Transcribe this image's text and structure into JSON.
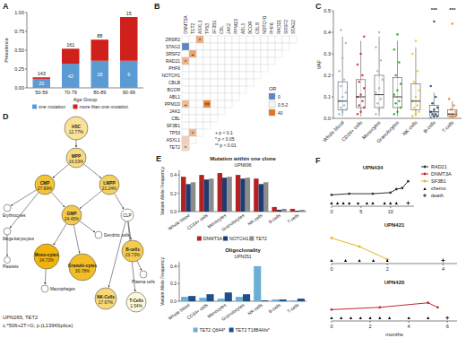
{
  "panel_labels": [
    "A",
    "B",
    "C",
    "D",
    "E",
    "F"
  ],
  "chart_data": [
    {
      "type": "bar",
      "stacked": true,
      "ylabel": "Prevalence",
      "xlabel": "Age Group",
      "categories": [
        "50-59",
        "70-79",
        "80-89",
        "90-99"
      ],
      "series": [
        {
          "name": "one mutation",
          "color": "#5a9bd4",
          "values": [
            0.12,
            0.32,
            0.36,
            0.36
          ],
          "labels": [
            20,
            42,
            18,
            6
          ]
        },
        {
          "name": "more than one mutation",
          "color": "#d0201c",
          "values": [
            0.02,
            0.2,
            0.28,
            0.58
          ]
        }
      ],
      "totals": [
        143,
        161,
        88,
        15
      ],
      "ylim": [
        0,
        1
      ],
      "yticks": [
        {
          "value": 0,
          "label": "0.00"
        },
        {
          "value": 0.25,
          "label": "0.25"
        },
        {
          "value": 0.5,
          "label": "0.50"
        },
        {
          "value": 0.75,
          "label": "0.75"
        },
        {
          "value": 1,
          "label": "1.00"
        }
      ],
      "legend": "bottom"
    },
    {
      "type": "heatmap",
      "rows": [
        "ZRSR2",
        "STAG2",
        "SRSF2",
        "RAD21",
        "PHF6",
        "NOTCH1",
        "CBLB",
        "BCOR",
        "ABL1",
        "PPM1D",
        "JAK2",
        "CBL",
        "SF3B1",
        "TP53",
        "ASXL1",
        "TET2"
      ],
      "cols": [
        "DNMT3A",
        "TET2",
        "ASXL1",
        "TP53",
        "SF3B1",
        "CBL",
        "JAK2",
        "PPM1D",
        "ABL1",
        "BCOR",
        "CBLB",
        "NOTCH1",
        "PHF6",
        "RAD21",
        "SRSF2",
        "STAG2"
      ],
      "cells": [
        {
          "row": 0,
          "col": 2,
          "value": 8,
          "sig": "*"
        },
        {
          "row": 1,
          "col": 0,
          "value": 0
        },
        {
          "row": 2,
          "col": 1,
          "value": 10,
          "sig": "+"
        },
        {
          "row": 3,
          "col": 0,
          "value": 6,
          "sig": "*"
        },
        {
          "row": 9,
          "col": 0,
          "value": 5,
          "sig": "+"
        },
        {
          "row": 9,
          "col": 3,
          "value": 30,
          "sig": "**"
        },
        {
          "row": 13,
          "col": 1,
          "value": 6,
          "sig": "*"
        },
        {
          "row": 14,
          "col": 0,
          "value": 3
        },
        {
          "row": 15,
          "col": 0,
          "value": 2.5,
          "sig": "*"
        }
      ],
      "color_title": "OR",
      "color_ticks": [
        0,
        {
          "value": 1,
          "label": "0.5-2"
        },
        40
      ],
      "sig_legend": [
        "+ p < 0.1",
        "* p < 0.05",
        "** p < 0.01"
      ]
    },
    {
      "type": "box",
      "ylabel": "VAF",
      "categories": [
        "Whole blood",
        "CD34+ cells",
        "Monocytes",
        "Granulocytes",
        "NK-cells",
        "B-cells",
        "T-cells"
      ],
      "groups": [
        {
          "color": "#8fb8de",
          "values": [
            0.02,
            0.03,
            0.04,
            0.05,
            0.06,
            0.08,
            0.1,
            0.12,
            0.15,
            0.18,
            0.22,
            0.28,
            0.35,
            0.41
          ],
          "box": [
            0.01,
            0.04,
            0.08,
            0.17,
            0.38
          ]
        },
        {
          "color": "#d62728",
          "values": [
            0.02,
            0.03,
            0.05,
            0.06,
            0.08,
            0.1,
            0.11,
            0.14,
            0.17,
            0.2,
            0.25,
            0.3,
            0.38
          ],
          "box": [
            0.01,
            0.05,
            0.1,
            0.18,
            0.36
          ]
        },
        {
          "color": "#9fb6c8",
          "values": [
            0.02,
            0.04,
            0.05,
            0.07,
            0.09,
            0.12,
            0.14,
            0.18,
            0.22,
            0.27,
            0.33,
            0.4
          ],
          "box": [
            0.01,
            0.05,
            0.11,
            0.2,
            0.38
          ]
        },
        {
          "color": "#2ca02c",
          "values": [
            0.02,
            0.03,
            0.05,
            0.07,
            0.08,
            0.11,
            0.13,
            0.16,
            0.2,
            0.26,
            0.32,
            0.39
          ],
          "box": [
            0.01,
            0.05,
            0.1,
            0.19,
            0.36
          ]
        },
        {
          "color": "#f0c419",
          "values": [
            0.01,
            0.02,
            0.03,
            0.05,
            0.06,
            0.08,
            0.1,
            0.13,
            0.17,
            0.22,
            0.3,
            0.36
          ],
          "box": [
            0.01,
            0.04,
            0.08,
            0.16,
            0.33
          ]
        },
        {
          "color": "#1f3f7a",
          "values": [
            0,
            0.01,
            0.01,
            0.02,
            0.02,
            0.03,
            0.04,
            0.05,
            0.07,
            0.1,
            0.15,
            0.45
          ],
          "box": [
            0,
            0.01,
            0.03,
            0.06,
            0.12
          ],
          "annotation": "***"
        },
        {
          "color": "#f58231",
          "values": [
            0,
            0,
            0.01,
            0.01,
            0.01,
            0.02,
            0.02,
            0.03,
            0.04,
            0.06,
            0.09,
            0.44
          ],
          "box": [
            0,
            0.01,
            0.02,
            0.04,
            0.08
          ],
          "annotation": "***"
        }
      ],
      "ylim": [
        0,
        0.5
      ],
      "yticks": [
        {
          "value": 0,
          "label": "0.0"
        },
        {
          "value": 0.1,
          "label": "0.1"
        },
        {
          "value": 0.2,
          "label": "0.2"
        },
        {
          "value": 0.3,
          "label": "0.3"
        },
        {
          "value": 0.4,
          "label": "0.4"
        },
        {
          "value": 0.5,
          "label": "0.5"
        }
      ]
    },
    {
      "type": "bar",
      "title": "Mutation within one clone",
      "subtitle": "UPN696",
      "ylabel": "Variant Allele Frequency",
      "categories": [
        "Whole blood",
        "CD34+ cells",
        "Monocytes",
        "Granulocytes",
        "NK-cells",
        "B-cells",
        "T-cells"
      ],
      "series": [
        {
          "name": "DNMT3A",
          "color": "#b22222",
          "values": [
            0.38,
            0.4,
            0.42,
            0.4,
            0.36,
            0.05,
            0.03
          ]
        },
        {
          "name": "NOTCH1",
          "color": "#1f3b73",
          "values": [
            0.3,
            0.35,
            0.37,
            0.36,
            0.3,
            0.02,
            0.01
          ]
        },
        {
          "name": "TET2",
          "color": "#8c8c8c",
          "values": [
            0.32,
            0.36,
            0.38,
            0.37,
            0.32,
            0.03,
            0.02
          ]
        }
      ],
      "ylim": [
        0,
        0.45
      ],
      "yticks": [
        {
          "value": 0,
          "label": "0.0"
        },
        {
          "value": 0.2,
          "label": "0.2"
        },
        {
          "value": 0.4,
          "label": "0.4"
        }
      ],
      "legend": "bottom"
    },
    {
      "type": "bar",
      "title": "Oligoclonality",
      "subtitle": "UPN351",
      "ylabel": "Variant Allele Frequency",
      "categories": [
        "Whole blood",
        "CD34+ cells",
        "Monocytes",
        "Granulocytes",
        "NK-cells",
        "B-cells",
        "T-cells"
      ],
      "series": [
        {
          "name": "TET2 Q644*",
          "color": "#6baed6",
          "values": [
            0.05,
            0.04,
            0.03,
            0.05,
            0.4,
            0.02,
            0.01
          ]
        },
        {
          "name": "TET2 T1884Afs*",
          "color": "#1f4e8c",
          "values": [
            0.06,
            0.08,
            0.1,
            0.08,
            0.01,
            0.02,
            0.03
          ]
        }
      ],
      "ylim": [
        0,
        0.45
      ],
      "yticks": [
        {
          "value": 0,
          "label": "0.0"
        },
        {
          "value": 0.2,
          "label": "0.2"
        },
        {
          "value": 0.4,
          "label": "0.4"
        }
      ],
      "legend": "bottom"
    },
    {
      "type": "line",
      "xlabel": "months",
      "legend": "upper right",
      "tick_labels": "x",
      "series": [
        {
          "name": "RAD21",
          "color": "#333333",
          "panel": 0,
          "marker": "circle",
          "x": [
            0,
            3,
            7,
            10,
            11,
            12,
            13
          ],
          "values": [
            0.1,
            0.11,
            0.11,
            0.12,
            0.15,
            0.16,
            0.22
          ]
        },
        {
          "name": "DNMT3A",
          "color": "#c0282d",
          "panel": 2,
          "marker": "circle",
          "x": [
            0,
            2.5,
            5,
            5.5
          ],
          "values": [
            0.1,
            0.12,
            0.16,
            0.12
          ]
        },
        {
          "name": "SF3B1",
          "color": "#e6b422",
          "panel": 1,
          "marker": "circle",
          "x": [
            0,
            1,
            2
          ],
          "values": [
            0.3,
            0.2,
            0.05
          ]
        }
      ],
      "panels": [
        {
          "title": "UPN434",
          "xlim": [
            0,
            14
          ],
          "xticks": [
            0,
            5,
            10
          ],
          "ylim": [
            0,
            0.3
          ],
          "chemo": [
            0,
            1,
            2,
            3,
            4.5,
            6,
            7,
            9,
            10,
            11
          ],
          "death": [
            13
          ]
        },
        {
          "title": "UPN421",
          "xlim": [
            0,
            4.5
          ],
          "xticks": [
            0,
            2,
            4
          ],
          "ylim": [
            0,
            0.4
          ],
          "chemo": [
            0,
            0.5,
            1,
            1.5,
            2
          ],
          "death": [
            4
          ]
        },
        {
          "title": "UPN420",
          "xlim": [
            0,
            6.5
          ],
          "xticks": [
            0,
            2,
            4,
            6
          ],
          "ylim": [
            0,
            0.3
          ],
          "chemo": [
            0,
            0.5,
            1,
            1.5,
            2,
            2.5,
            3,
            4,
            5
          ],
          "death": [
            6
          ]
        }
      ],
      "event_labels": [
        "chemo",
        "death"
      ]
    }
  ],
  "diagram": {
    "nodes": [
      {
        "label": "HSC",
        "value": "12.77%"
      },
      {
        "label": "MPP",
        "value": "16.03%"
      },
      {
        "label": "CMP",
        "value": "27.89%"
      },
      {
        "label": "LMPP",
        "value": "21.24%"
      },
      {
        "label": "GMP",
        "value": "24.45%"
      },
      {
        "label": "CLP"
      },
      {
        "label": "Erythrocytes"
      },
      {
        "label": "Mega-karyocytes"
      },
      {
        "label": "Platelets"
      },
      {
        "label": "Dendritic cells"
      },
      {
        "label": "Mono-cytes",
        "value": "34.73%"
      },
      {
        "label": "Granulo-cytes",
        "value": "30.78%"
      },
      {
        "label": "Macrophages"
      },
      {
        "label": "B-cells",
        "value": "23.73%"
      },
      {
        "label": "Plasma cells"
      },
      {
        "label": "NK-Cells",
        "value": "17.67%"
      },
      {
        "label": "T-Cells",
        "value": "1.54%"
      }
    ],
    "edges": [
      [
        0,
        1
      ],
      [
        1,
        2
      ],
      [
        1,
        3
      ],
      [
        2,
        4
      ],
      [
        3,
        4
      ],
      [
        3,
        5
      ],
      [
        2,
        6
      ],
      [
        2,
        7
      ],
      [
        7,
        8
      ],
      [
        4,
        10
      ],
      [
        4,
        11
      ],
      [
        4,
        9
      ],
      [
        10,
        12
      ],
      [
        5,
        13
      ],
      [
        5,
        15
      ],
      [
        5,
        16
      ],
      [
        13,
        14
      ]
    ],
    "caption": [
      "UPN265, TET2",
      "c.*506+2T>G; p.(L1394Splice)"
    ]
  }
}
